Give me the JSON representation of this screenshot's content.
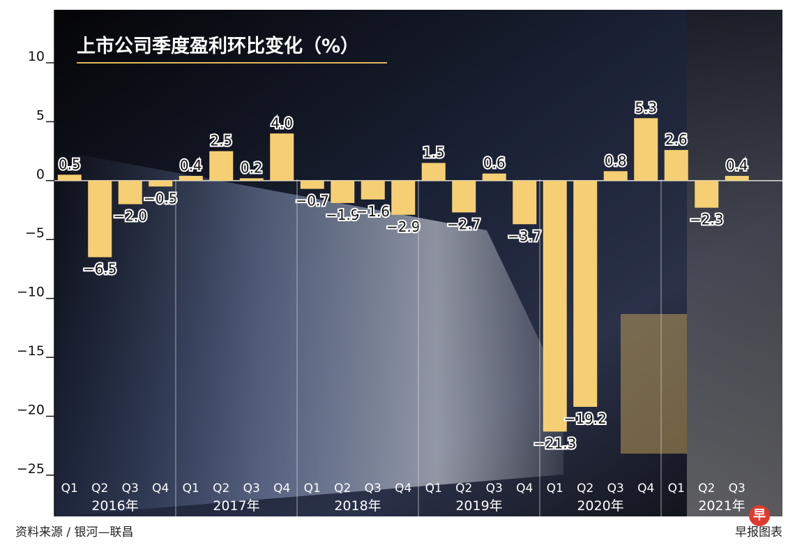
{
  "chart_data": {
    "type": "bar",
    "title": "上市公司季度盈利环比变化（%）",
    "ylim": [
      -28.5,
      14.5
    ],
    "yticks": [
      10,
      5,
      0,
      -5,
      -10,
      -15,
      -20,
      -25
    ],
    "ytick_labels": [
      "10",
      "5",
      "0",
      "−5",
      "−10",
      "−15",
      "−20",
      "−25"
    ],
    "groups": [
      {
        "year": "2016年",
        "quarters": [
          "Q1",
          "Q2",
          "Q3",
          "Q4"
        ],
        "values": [
          0.5,
          -6.5,
          -2.0,
          -0.5
        ],
        "labels": [
          "0.5",
          "−6.5",
          "−2.0",
          "−0.5"
        ]
      },
      {
        "year": "2017年",
        "quarters": [
          "Q1",
          "Q2",
          "Q3",
          "Q4"
        ],
        "values": [
          0.4,
          2.5,
          0.2,
          4.0
        ],
        "labels": [
          "0.4",
          "2.5",
          "0.2",
          "4.0"
        ]
      },
      {
        "year": "2018年",
        "quarters": [
          "Q1",
          "Q2",
          "Q3",
          "Q4"
        ],
        "values": [
          -0.7,
          -1.9,
          -1.6,
          -2.9
        ],
        "labels": [
          "−0.7",
          "−1.9",
          "−1.6",
          "−2.9"
        ]
      },
      {
        "year": "2019年",
        "quarters": [
          "Q1",
          "Q2",
          "Q3",
          "Q4"
        ],
        "values": [
          1.5,
          -2.7,
          0.6,
          -3.7
        ],
        "labels": [
          "1.5",
          "−2.7",
          "0.6",
          "−3.7"
        ]
      },
      {
        "year": "2020年",
        "quarters": [
          "Q1",
          "Q2",
          "Q3",
          "Q4"
        ],
        "values": [
          -21.3,
          -19.2,
          0.8,
          5.3
        ],
        "labels": [
          "−21.3",
          "−19.2",
          "0.8",
          "5.3"
        ]
      },
      {
        "year": "2021年",
        "quarters": [
          "Q1",
          "Q2",
          "Q3"
        ],
        "values": [
          2.6,
          -2.3,
          0.4
        ],
        "labels": [
          "2.6",
          "−2.3",
          "0.4"
        ]
      }
    ],
    "bar_color": "#f6cf74",
    "background_color": "#0d0d0f",
    "grid": false
  },
  "source": "资料来源 / 银河—联昌",
  "credit": "早报图表",
  "logo_text": "早"
}
